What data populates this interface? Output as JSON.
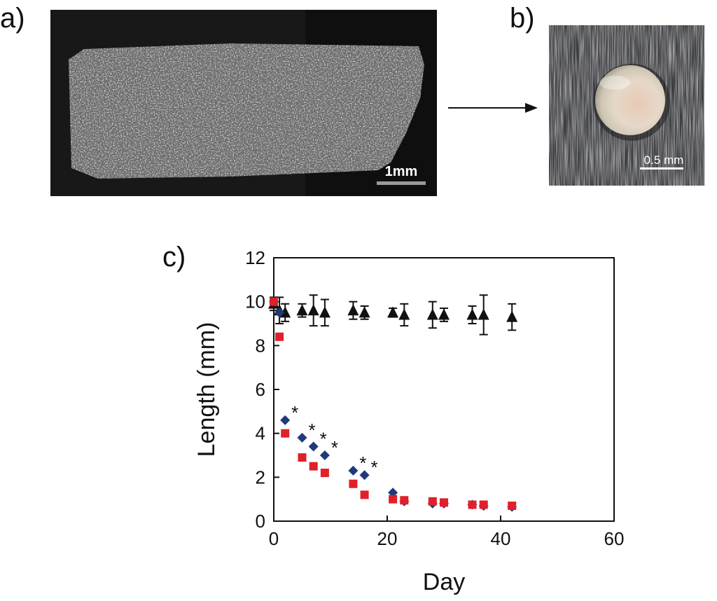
{
  "panels": {
    "a": {
      "label": "a)",
      "scale_bar_label": "1mm"
    },
    "b": {
      "label": "b)",
      "scale_bar_label": "0.5 mm"
    },
    "c": {
      "label": "c)"
    }
  },
  "colors": {
    "scaffold_bg": "#0f0f0f",
    "red_series": "#e0202a",
    "blue_series": "#1f3a7a",
    "black_series": "#111111"
  },
  "chart_data": {
    "type": "scatter",
    "title": "",
    "xlabel": "Day",
    "ylabel": "Length (mm)",
    "xlim": [
      0,
      60
    ],
    "ylim": [
      0,
      12
    ],
    "xticks": [
      0,
      20,
      40,
      60
    ],
    "yticks": [
      0,
      2,
      4,
      6,
      8,
      10,
      12
    ],
    "series": [
      {
        "name": "triangle",
        "marker": "triangle",
        "color": "#111111",
        "points": [
          {
            "x": 0,
            "y": 9.9,
            "err": 0.3
          },
          {
            "x": 1,
            "y": 9.6,
            "err": 0.6
          },
          {
            "x": 2,
            "y": 9.5,
            "err": 0.4
          },
          {
            "x": 5,
            "y": 9.6,
            "err": 0.3
          },
          {
            "x": 7,
            "y": 9.6,
            "err": 0.7
          },
          {
            "x": 9,
            "y": 9.5,
            "err": 0.6
          },
          {
            "x": 14,
            "y": 9.6,
            "err": 0.4
          },
          {
            "x": 16,
            "y": 9.5,
            "err": 0.3
          },
          {
            "x": 21,
            "y": 9.5,
            "err": 0.2
          },
          {
            "x": 23,
            "y": 9.4,
            "err": 0.5
          },
          {
            "x": 28,
            "y": 9.4,
            "err": 0.6
          },
          {
            "x": 30,
            "y": 9.4,
            "err": 0.3
          },
          {
            "x": 35,
            "y": 9.4,
            "err": 0.4
          },
          {
            "x": 37,
            "y": 9.4,
            "err": 0.9
          },
          {
            "x": 42,
            "y": 9.3,
            "err": 0.6
          }
        ]
      },
      {
        "name": "diamond",
        "marker": "diamond",
        "color": "#1f3a7a",
        "points": [
          {
            "x": 0,
            "y": 10.0,
            "err": 0
          },
          {
            "x": 1,
            "y": 9.5,
            "err": 0
          },
          {
            "x": 2,
            "y": 4.6,
            "err": 0
          },
          {
            "x": 5,
            "y": 3.8,
            "err": 0
          },
          {
            "x": 7,
            "y": 3.4,
            "err": 0
          },
          {
            "x": 9,
            "y": 3.0,
            "err": 0
          },
          {
            "x": 14,
            "y": 2.3,
            "err": 0
          },
          {
            "x": 16,
            "y": 2.1,
            "err": 0
          },
          {
            "x": 21,
            "y": 1.3,
            "err": 0
          },
          {
            "x": 23,
            "y": 0.9,
            "err": 0
          },
          {
            "x": 28,
            "y": 0.8,
            "err": 0
          },
          {
            "x": 30,
            "y": 0.8,
            "err": 0
          },
          {
            "x": 35,
            "y": 0.75,
            "err": 0
          },
          {
            "x": 37,
            "y": 0.7,
            "err": 0
          },
          {
            "x": 42,
            "y": 0.65,
            "err": 0
          }
        ]
      },
      {
        "name": "square",
        "marker": "square",
        "color": "#e0202a",
        "points": [
          {
            "x": 0,
            "y": 10.0,
            "err": 0
          },
          {
            "x": 1,
            "y": 8.4,
            "err": 0
          },
          {
            "x": 2,
            "y": 4.0,
            "err": 0
          },
          {
            "x": 5,
            "y": 2.9,
            "err": 0
          },
          {
            "x": 7,
            "y": 2.5,
            "err": 0
          },
          {
            "x": 9,
            "y": 2.2,
            "err": 0
          },
          {
            "x": 14,
            "y": 1.7,
            "err": 0
          },
          {
            "x": 16,
            "y": 1.2,
            "err": 0
          },
          {
            "x": 21,
            "y": 1.0,
            "err": 0
          },
          {
            "x": 23,
            "y": 0.95,
            "err": 0
          },
          {
            "x": 28,
            "y": 0.9,
            "err": 0
          },
          {
            "x": 30,
            "y": 0.85,
            "err": 0
          },
          {
            "x": 35,
            "y": 0.75,
            "err": 0
          },
          {
            "x": 37,
            "y": 0.75,
            "err": 0
          },
          {
            "x": 42,
            "y": 0.7,
            "err": 0
          }
        ]
      }
    ],
    "annotations": [
      {
        "text": "*",
        "x": 2,
        "y": 4.6
      },
      {
        "text": "*",
        "x": 5,
        "y": 3.8
      },
      {
        "text": "*",
        "x": 7,
        "y": 3.4
      },
      {
        "text": "*",
        "x": 9,
        "y": 3.0
      },
      {
        "text": "*",
        "x": 14,
        "y": 2.3
      },
      {
        "text": "*",
        "x": 16,
        "y": 2.1
      }
    ]
  }
}
